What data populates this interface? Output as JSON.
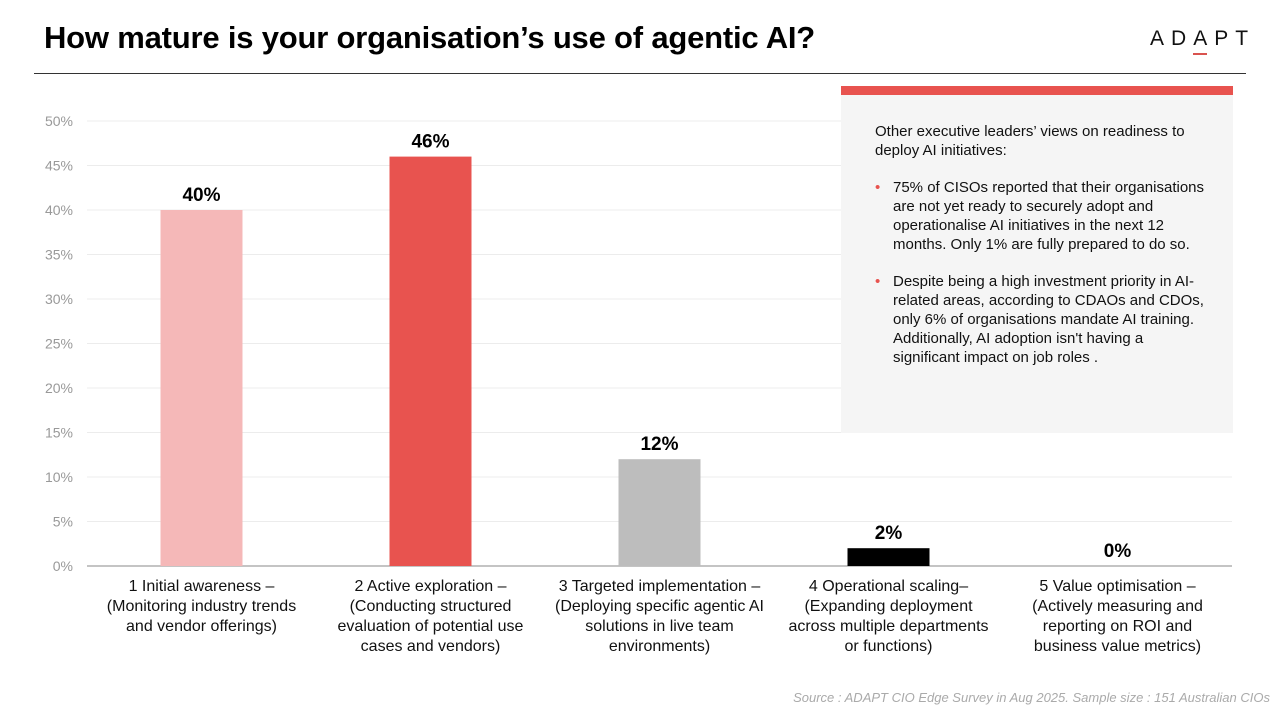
{
  "header": {
    "title": "How mature is your organisation’s use of agentic AI?",
    "logo": "ADAPT"
  },
  "chart_data": {
    "type": "bar",
    "title": "How mature is your organisation’s use of agentic AI?",
    "categories": [
      "1 Initial awareness – (Monitoring industry trends and vendor offerings)",
      "2 Active exploration– (Conducting structured evaluation of potential use cases and vendors)",
      "3 Targeted implementation – (Deploying specific agentic AI solutions in live team environments)",
      "4 Operational scaling– (Expanding deployment across multiple departments or functions)",
      "5 Value optimisation – (Actively measuring and reporting on ROI and business value metrics)"
    ],
    "category_lines": [
      [
        "1 Initial awareness –",
        "(Monitoring industry trends",
        "and vendor offerings)"
      ],
      [
        "2 Active exploration –",
        "(Conducting structured",
        "evaluation of potential use",
        "cases and vendors)"
      ],
      [
        "3 Targeted implementation –",
        "(Deploying specific agentic AI",
        "solutions in live team",
        "environments)"
      ],
      [
        "4 Operational scaling–",
        "(Expanding deployment",
        "across multiple departments",
        "or functions)"
      ],
      [
        "5 Value optimisation –",
        "(Actively measuring and",
        "reporting on ROI and",
        "business value metrics)"
      ]
    ],
    "values": [
      40,
      46,
      12,
      2,
      0
    ],
    "data_labels": [
      "40%",
      "46%",
      "12%",
      "2%",
      "0%"
    ],
    "colors": [
      "#f5b8b8",
      "#e8534f",
      "#bdbdbd",
      "#000000",
      "#000000"
    ],
    "ylim": [
      0,
      50
    ],
    "yticks": [
      "0%",
      "5%",
      "10%",
      "15%",
      "20%",
      "25%",
      "30%",
      "35%",
      "40%",
      "45%",
      "50%"
    ],
    "grid": true
  },
  "panel": {
    "intro": "Other executive leaders’ views on readiness to deploy AI initiatives:",
    "bullets": [
      "75% of CISOs reported that their organisations are not yet ready to securely adopt and operationalise AI initiatives in the next 12 months. Only 1% are fully prepared to do so.",
      "Despite being a high investment priority in AI-related areas, according to CDAOs and CDOs, only 6% of organisations mandate AI training. Additionally, AI adoption isn't having a significant impact on job roles ."
    ]
  },
  "source": "Source : ADAPT CIO Edge Survey in Aug 2025. Sample size : 151 Australian CIOs"
}
